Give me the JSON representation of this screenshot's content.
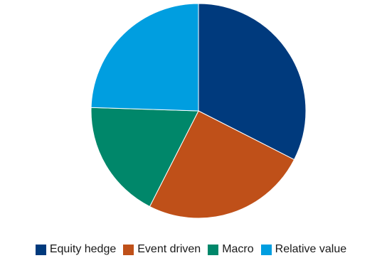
{
  "chart_data": {
    "type": "pie",
    "title": "",
    "categories": [
      "Equity hedge",
      "Event driven",
      "Macro",
      "Relative value"
    ],
    "values": [
      32.5,
      25.0,
      18.0,
      24.5
    ],
    "colors": [
      "#003a7d",
      "#bf5019",
      "#00876a",
      "#009ee0"
    ],
    "start_angle_deg": 0,
    "direction": "clockwise",
    "legend_position": "bottom"
  }
}
